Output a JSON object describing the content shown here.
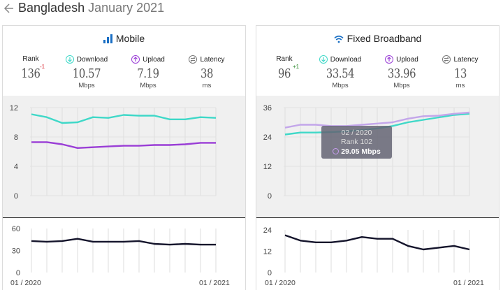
{
  "header": {
    "country": "Bangladesh",
    "period": "January 2021"
  },
  "colors": {
    "download": "#3fd8c8",
    "upload": "#9a3ed6",
    "latency": "#14142b",
    "accent_blue": "#1a6fc4",
    "tooltip_upload": "#c3a6ea"
  },
  "panels": {
    "mobile": {
      "title": "Mobile",
      "icon": "signal-bars-icon",
      "rank_label": "Rank",
      "rank": "136",
      "rank_change": "-1",
      "download_label": "Download",
      "download": "10.57",
      "upload_label": "Upload",
      "upload": "7.19",
      "latency_label": "Latency",
      "latency": "38",
      "unit_speed": "Mbps",
      "unit_latency": "ms",
      "x_start": "01 / 2020",
      "x_end": "01 / 2021"
    },
    "broadband": {
      "title": "Fixed Broadband",
      "icon": "wifi-icon",
      "rank_label": "Rank",
      "rank": "96",
      "rank_change": "+1",
      "download_label": "Download",
      "download": "33.54",
      "upload_label": "Upload",
      "upload": "33.96",
      "latency_label": "Latency",
      "latency": "13",
      "unit_speed": "Mbps",
      "unit_latency": "ms",
      "x_start": "01 / 2020",
      "x_end": "01 / 2021",
      "tooltip": {
        "date": "02 / 2020",
        "rank": "Rank 102",
        "value": "29.05 Mbps"
      }
    }
  },
  "chart_data": [
    {
      "type": "line",
      "panel": "mobile-speed",
      "x": [
        "01/2020",
        "02/2020",
        "03/2020",
        "04/2020",
        "05/2020",
        "06/2020",
        "07/2020",
        "08/2020",
        "09/2020",
        "10/2020",
        "11/2020",
        "12/2020",
        "01/2021"
      ],
      "yticks": [
        0,
        4,
        8,
        12
      ],
      "ylim": [
        0,
        12
      ],
      "series": [
        {
          "values": [
            11.1,
            10.7,
            9.9,
            10.0,
            10.7,
            10.6,
            11.0,
            10.9,
            10.9,
            10.4,
            10.4,
            10.7,
            10.6
          ]
        },
        {
          "values": [
            7.3,
            7.3,
            7.0,
            6.5,
            6.6,
            6.7,
            6.8,
            6.8,
            6.9,
            6.9,
            7.0,
            7.2,
            7.2
          ]
        }
      ]
    },
    {
      "type": "line",
      "panel": "mobile-latency",
      "x": [
        "01/2020",
        "02/2020",
        "03/2020",
        "04/2020",
        "05/2020",
        "06/2020",
        "07/2020",
        "08/2020",
        "09/2020",
        "10/2020",
        "11/2020",
        "12/2020",
        "01/2021"
      ],
      "yticks": [
        0,
        30,
        60
      ],
      "ylim": [
        0,
        60
      ],
      "series": [
        {
          "values": [
            43,
            42,
            43,
            46,
            42,
            42,
            42,
            43,
            39,
            38,
            39,
            38,
            38
          ]
        }
      ]
    },
    {
      "type": "line",
      "panel": "broadband-speed",
      "x": [
        "01/2020",
        "02/2020",
        "03/2020",
        "04/2020",
        "05/2020",
        "06/2020",
        "07/2020",
        "08/2020",
        "09/2020",
        "10/2020",
        "11/2020",
        "12/2020",
        "01/2021"
      ],
      "yticks": [
        0,
        12,
        24,
        36
      ],
      "ylim": [
        0,
        36
      ],
      "series": [
        {
          "values": [
            25.0,
            25.8,
            25.8,
            26.0,
            26.3,
            26.8,
            27.5,
            28.5,
            30.0,
            31.0,
            32.0,
            33.0,
            33.5
          ]
        },
        {
          "values": [
            27.8,
            29.0,
            29.0,
            28.5,
            28.5,
            29.0,
            29.5,
            30.0,
            31.5,
            32.5,
            32.7,
            33.5,
            34.0
          ]
        }
      ]
    },
    {
      "type": "line",
      "panel": "broadband-latency",
      "x": [
        "01/2020",
        "02/2020",
        "03/2020",
        "04/2020",
        "05/2020",
        "06/2020",
        "07/2020",
        "08/2020",
        "09/2020",
        "10/2020",
        "11/2020",
        "12/2020",
        "01/2021"
      ],
      "yticks": [
        0,
        12,
        24
      ],
      "ylim": [
        0,
        24
      ],
      "series": [
        {
          "values": [
            21,
            18,
            17,
            17,
            18,
            20,
            19,
            19,
            15,
            13,
            14,
            15,
            13
          ]
        }
      ]
    }
  ]
}
